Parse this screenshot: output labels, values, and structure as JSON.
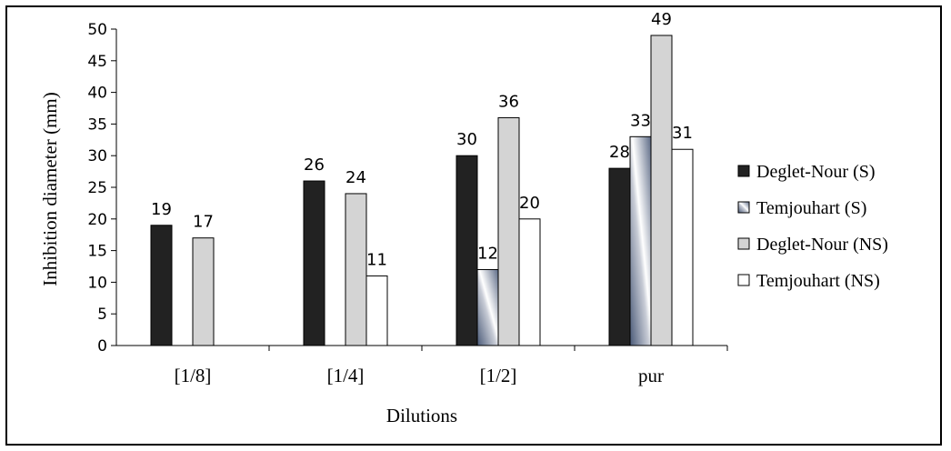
{
  "chart_data": {
    "type": "bar",
    "title": "",
    "xlabel": "Dilutions",
    "ylabel": "Inhibition diameter (mm)",
    "ylim": [
      0,
      50
    ],
    "ytick_step": 5,
    "categories": [
      "[1/8]",
      "[1/4]",
      "[1/2]",
      "pur"
    ],
    "legend_position": "right",
    "grid": false,
    "series": [
      {
        "name": "Deglet-Nour (S)",
        "values": [
          19,
          26,
          30,
          28
        ],
        "color": "#222222",
        "pattern": "solid-dark"
      },
      {
        "name": "Temjouhart (S)",
        "values": [
          null,
          null,
          12,
          33
        ],
        "color": "#8c96a8",
        "pattern": "gradient-stripe"
      },
      {
        "name": "Deglet-Nour (NS)",
        "values": [
          17,
          24,
          36,
          49
        ],
        "color": "#d4d4d4",
        "pattern": "solid-light"
      },
      {
        "name": "Temjouhart (NS)",
        "values": [
          null,
          11,
          20,
          31
        ],
        "color": "#ffffff",
        "pattern": "solid-white"
      }
    ]
  }
}
